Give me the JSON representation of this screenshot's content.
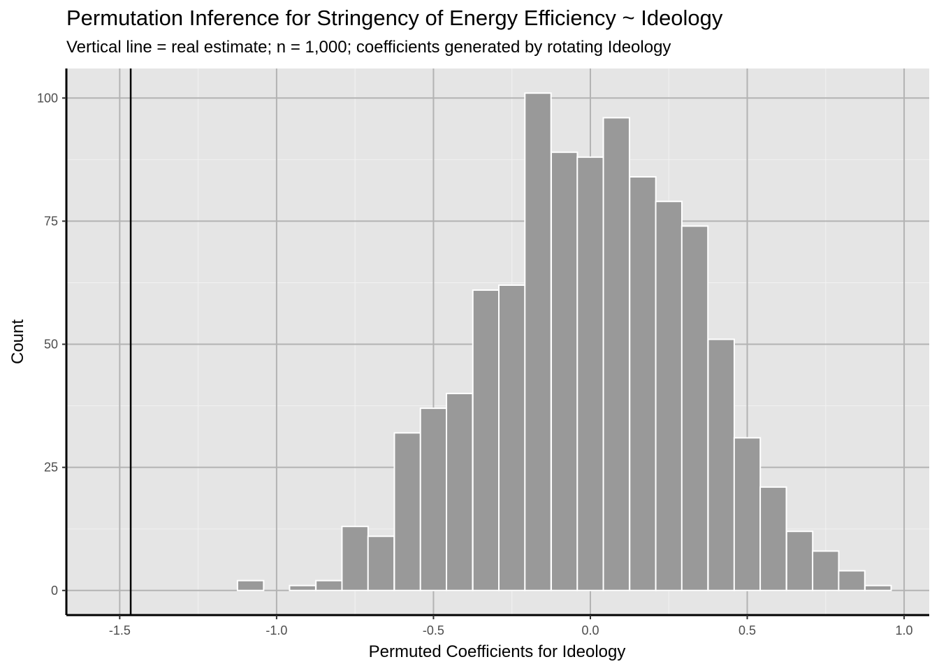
{
  "chart_data": {
    "type": "bar",
    "title": "Permutation Inference for Stringency of Energy Efficiency ~ Ideology",
    "subtitle": "Vertical line = real estimate; n = 1,000; coefficients generated by rotating Ideology",
    "xlabel": "Permuted Coefficients for Ideology",
    "ylabel": "Count",
    "xlim": [
      -1.67,
      1.08
    ],
    "ylim": [
      -5,
      106
    ],
    "x_ticks": [
      -1.5,
      -1.0,
      -0.5,
      0.0,
      0.5,
      1.0
    ],
    "x_tick_labels": [
      "-1.5",
      "-1.0",
      "-0.5",
      "0.0",
      "0.5",
      "1.0"
    ],
    "y_ticks": [
      0,
      25,
      50,
      75,
      100
    ],
    "y_tick_labels": [
      "0",
      "25",
      "50",
      "75",
      "100"
    ],
    "bin_width": 0.0833,
    "bins": [
      {
        "center": -1.5,
        "count": 0
      },
      {
        "center": -1.417,
        "count": 0
      },
      {
        "center": -1.333,
        "count": 0
      },
      {
        "center": -1.25,
        "count": 0
      },
      {
        "center": -1.167,
        "count": 0
      },
      {
        "center": -1.083,
        "count": 2
      },
      {
        "center": -1.0,
        "count": 0
      },
      {
        "center": -0.917,
        "count": 1
      },
      {
        "center": -0.833,
        "count": 2
      },
      {
        "center": -0.75,
        "count": 13
      },
      {
        "center": -0.667,
        "count": 11
      },
      {
        "center": -0.583,
        "count": 32
      },
      {
        "center": -0.5,
        "count": 37
      },
      {
        "center": -0.417,
        "count": 40
      },
      {
        "center": -0.333,
        "count": 61
      },
      {
        "center": -0.25,
        "count": 62
      },
      {
        "center": -0.167,
        "count": 101
      },
      {
        "center": -0.083,
        "count": 89
      },
      {
        "center": 0.0,
        "count": 88
      },
      {
        "center": 0.083,
        "count": 96
      },
      {
        "center": 0.167,
        "count": 84
      },
      {
        "center": 0.25,
        "count": 79
      },
      {
        "center": 0.333,
        "count": 74
      },
      {
        "center": 0.417,
        "count": 51
      },
      {
        "center": 0.5,
        "count": 31
      },
      {
        "center": 0.583,
        "count": 21
      },
      {
        "center": 0.667,
        "count": 12
      },
      {
        "center": 0.75,
        "count": 8
      },
      {
        "center": 0.833,
        "count": 4
      },
      {
        "center": 0.917,
        "count": 1
      }
    ],
    "real_estimate": -1.465,
    "grid": true,
    "colors": {
      "panel": "#e5e5e5",
      "grid_major": "#b3b3b3",
      "grid_minor": "#f2f2f2",
      "bar_fill": "#999999",
      "bar_edge": "#ffffff",
      "estimate_line": "#000000"
    }
  }
}
